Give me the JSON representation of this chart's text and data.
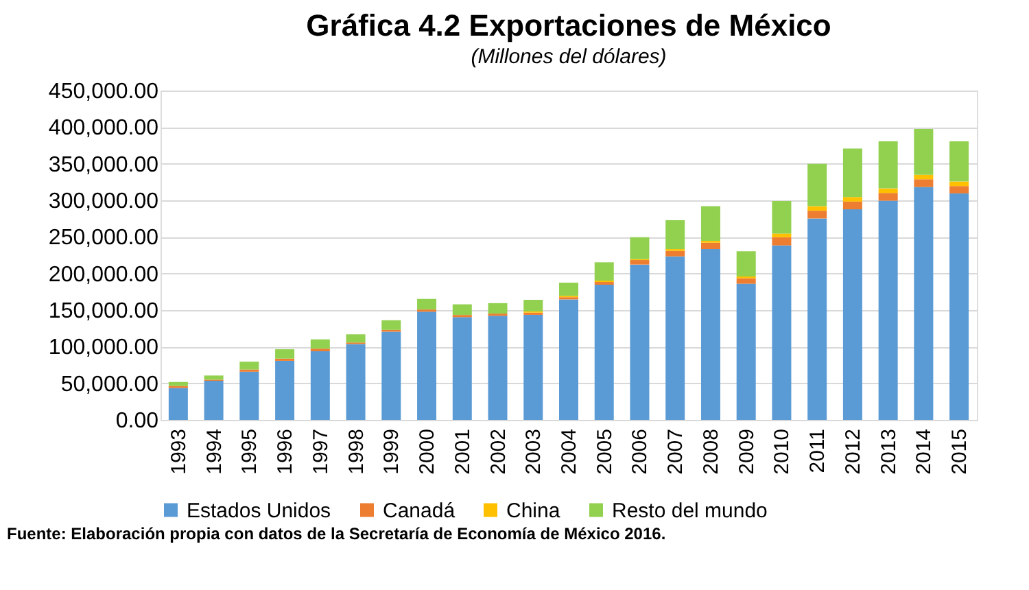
{
  "chart_data": {
    "type": "bar",
    "stacked": true,
    "title": "Gráfica 4.2 Exportaciones  de México",
    "subtitle": "(Millones del dólares)",
    "categories": [
      "1993",
      "1994",
      "1995",
      "1996",
      "1997",
      "1998",
      "1999",
      "2000",
      "2001",
      "2002",
      "2003",
      "2004",
      "2005",
      "2006",
      "2007",
      "2008",
      "2009",
      "2010",
      "2011",
      "2012",
      "2013",
      "2014",
      "2015"
    ],
    "series": [
      {
        "name": "Estados Unidos",
        "color": "#5b9bd5",
        "values": [
          43500,
          53400,
          65800,
          80700,
          93800,
          103700,
          120500,
          147800,
          140300,
          142200,
          143500,
          164600,
          184700,
          212200,
          223400,
          233400,
          186000,
          238400,
          275200,
          287700,
          299500,
          318200,
          309500
        ]
      },
      {
        "name": "Canadá",
        "color": "#ed7d31",
        "values": [
          3000,
          1500,
          3000,
          3000,
          3500,
          2000,
          2500,
          3000,
          3000,
          3000,
          3000,
          3000,
          3700,
          6200,
          7500,
          8700,
          7500,
          11200,
          10600,
          10600,
          10600,
          10600,
          10000
        ]
      },
      {
        "name": "China",
        "color": "#ffc000",
        "values": [
          null,
          null,
          null,
          null,
          null,
          null,
          null,
          null,
          null,
          null,
          1800,
          1900,
          1900,
          1200,
          2500,
          2500,
          2500,
          5000,
          6200,
          6200,
          6200,
          6200,
          6200
        ]
      },
      {
        "name": "Resto del mundo",
        "color": "#92d050",
        "values": [
          5200,
          5700,
          10700,
          12800,
          12700,
          11200,
          13100,
          14500,
          14600,
          14300,
          15700,
          18000,
          25000,
          30000,
          39300,
          47400,
          34300,
          44400,
          58000,
          66200,
          64300,
          62500,
          54900
        ]
      }
    ],
    "ylim": [
      0,
      450000
    ],
    "yticks": [
      {
        "value": 0,
        "label": "0.00"
      },
      {
        "value": 50000,
        "label": "50,000.00"
      },
      {
        "value": 100000,
        "label": "100,000.00"
      },
      {
        "value": 150000,
        "label": "150,000.00"
      },
      {
        "value": 200000,
        "label": "200,000.00"
      },
      {
        "value": 250000,
        "label": "250,000.00"
      },
      {
        "value": 300000,
        "label": "300,000.00"
      },
      {
        "value": 350000,
        "label": "350,000.00"
      },
      {
        "value": 400000,
        "label": "400,000.00"
      },
      {
        "value": 450000,
        "label": "450,000.00"
      }
    ],
    "grid": "y",
    "legend": "bottom",
    "annotations": [
      "Fuente: Elaboración propia con datos de la Secretaría de Economía de México 2016."
    ]
  }
}
